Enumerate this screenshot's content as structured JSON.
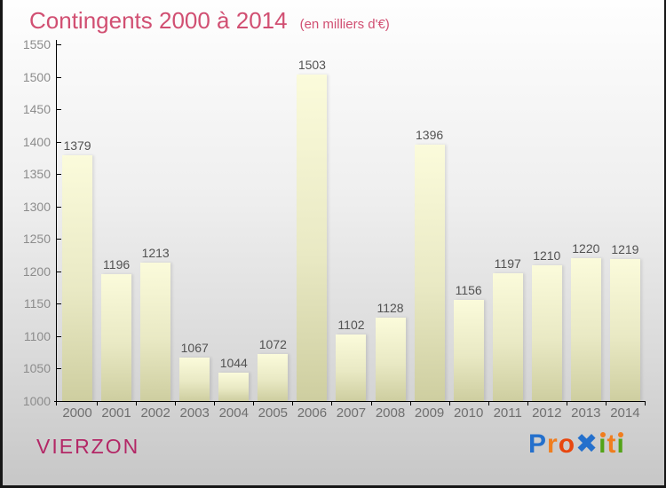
{
  "page": {
    "title": "Contingents 2000 à 2014",
    "subtitle": "(en milliers d'€)"
  },
  "chart_data": {
    "type": "bar",
    "title": "Contingents 2000 à 2014",
    "subtitle": "(en milliers d'€)",
    "categories": [
      "2000",
      "2001",
      "2002",
      "2003",
      "2004",
      "2005",
      "2006",
      "2007",
      "2008",
      "2009",
      "2010",
      "2011",
      "2012",
      "2013",
      "2014"
    ],
    "values": [
      1379,
      1196,
      1213,
      1067,
      1044,
      1072,
      1503,
      1102,
      1128,
      1396,
      1156,
      1197,
      1210,
      1220,
      1219
    ],
    "xlabel": "",
    "ylabel": "",
    "ylim": [
      1000,
      1550
    ],
    "ytick_step": 50,
    "yticks": [
      1000,
      1050,
      1100,
      1150,
      1200,
      1250,
      1300,
      1350,
      1400,
      1450,
      1500,
      1550
    ],
    "grid": false,
    "legend": null,
    "value_labels_shown": true,
    "bar_gradient_top": "#fbfbdb",
    "bar_gradient_bottom": "#cecea0"
  },
  "footer": {
    "location": "VIERZON",
    "logo": {
      "name": "Proxiti",
      "letters": [
        {
          "ch": "P",
          "color": "#2470cc"
        },
        {
          "ch": "r",
          "color": "#f07d1e"
        },
        {
          "ch": "o",
          "color": "#e8470f"
        },
        {
          "ch": "✖",
          "color": "#2470cc"
        },
        {
          "ch": "ı",
          "color": "#53a318",
          "dot": "#f07d1e"
        },
        {
          "ch": "t",
          "color": "#f07d1e"
        },
        {
          "ch": "ı",
          "color": "#53a318",
          "dot": "#f07d1e"
        }
      ]
    }
  },
  "colors": {
    "title": "#d14f72",
    "location": "#b32766",
    "value_label": "#525252",
    "y_tick_label": "#8c8c8c",
    "x_tick_label": "#6f6f6f",
    "axis": "#000000",
    "border": "#161616",
    "background_top": "#fefefe",
    "background_bottom": "#c7c7c7"
  }
}
